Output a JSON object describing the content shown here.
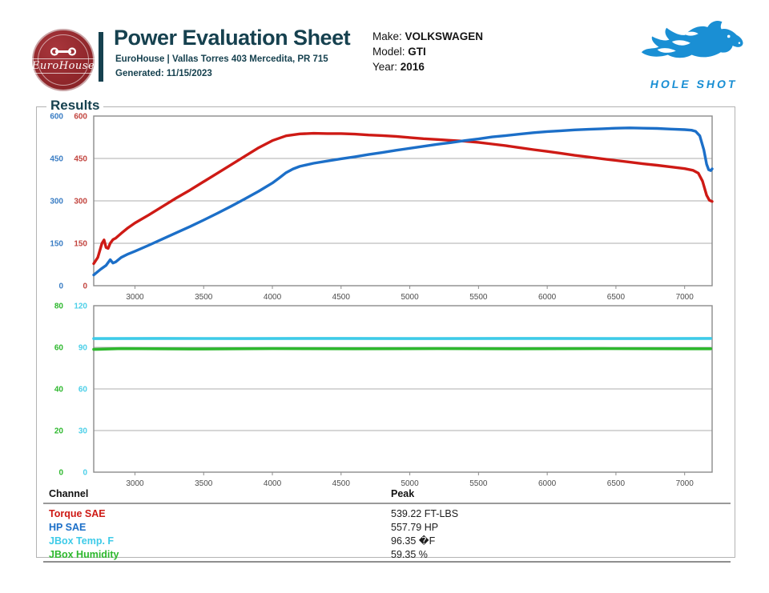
{
  "header": {
    "title": "Power Evaluation Sheet",
    "subtitle": "EuroHouse | Vallas Torres 403 Mercedita, PR 715",
    "generated": "Generated: 11/15/2023",
    "logo_name": "EuroHouse",
    "vehicle": {
      "make_label": "Make:",
      "make_value": "VOLKSWAGEN",
      "model_label": "Model:",
      "model_value": "GTI",
      "year_label": "Year:",
      "year_value": "2016"
    },
    "brand": {
      "name": "HOLE SHOT",
      "color": "#1a8fd4"
    }
  },
  "results": {
    "section_label": "Results"
  },
  "chart_data": [
    {
      "type": "line",
      "x_range": [
        2700,
        7200
      ],
      "x_ticks": [
        3000,
        3500,
        4000,
        4500,
        5000,
        5500,
        6000,
        6500,
        7000
      ],
      "grid": true,
      "grid_color": "#aeaeae",
      "border_color": "#8c8c8c",
      "legend_position": "none",
      "axes": [
        {
          "name": "HP SAE",
          "color": "#3a7dc4",
          "range": [
            0,
            600
          ],
          "ticks": [
            0,
            150,
            300,
            450,
            600
          ]
        },
        {
          "name": "Torque SAE",
          "color": "#c2453f",
          "range": [
            0,
            600
          ],
          "ticks": [
            0,
            150,
            300,
            450,
            600
          ]
        }
      ],
      "series": [
        {
          "name": "Torque SAE",
          "axis": 1,
          "color": "#ce1a15",
          "width": 3.4,
          "points": [
            [
              2700,
              78
            ],
            [
              2730,
              100
            ],
            [
              2760,
              150
            ],
            [
              2775,
              162
            ],
            [
              2790,
              135
            ],
            [
              2805,
              132
            ],
            [
              2820,
              150
            ],
            [
              2840,
              163
            ],
            [
              2860,
              168
            ],
            [
              2900,
              185
            ],
            [
              2950,
              205
            ],
            [
              3000,
              222
            ],
            [
              3100,
              250
            ],
            [
              3200,
              280
            ],
            [
              3300,
              310
            ],
            [
              3400,
              338
            ],
            [
              3500,
              368
            ],
            [
              3600,
              398
            ],
            [
              3700,
              428
            ],
            [
              3800,
              458
            ],
            [
              3900,
              488
            ],
            [
              4000,
              513
            ],
            [
              4100,
              530
            ],
            [
              4200,
              537
            ],
            [
              4300,
              539
            ],
            [
              4400,
              538
            ],
            [
              4500,
              538
            ],
            [
              4600,
              536
            ],
            [
              4700,
              533
            ],
            [
              4800,
              531
            ],
            [
              4900,
              528
            ],
            [
              5000,
              524
            ],
            [
              5100,
              520
            ],
            [
              5200,
              517
            ],
            [
              5300,
              514
            ],
            [
              5400,
              511
            ],
            [
              5500,
              507
            ],
            [
              5600,
              501
            ],
            [
              5700,
              495
            ],
            [
              5800,
              488
            ],
            [
              5900,
              481
            ],
            [
              6000,
              475
            ],
            [
              6100,
              468
            ],
            [
              6200,
              461
            ],
            [
              6300,
              455
            ],
            [
              6400,
              449
            ],
            [
              6500,
              443
            ],
            [
              6600,
              437
            ],
            [
              6700,
              431
            ],
            [
              6800,
              426
            ],
            [
              6900,
              420
            ],
            [
              7000,
              414
            ],
            [
              7060,
              408
            ],
            [
              7100,
              398
            ],
            [
              7130,
              370
            ],
            [
              7160,
              320
            ],
            [
              7180,
              302
            ],
            [
              7200,
              298
            ]
          ]
        },
        {
          "name": "HP SAE",
          "axis": 0,
          "color": "#1c6fc8",
          "width": 3.4,
          "points": [
            [
              2700,
              38
            ],
            [
              2750,
              58
            ],
            [
              2790,
              72
            ],
            [
              2820,
              92
            ],
            [
              2840,
              80
            ],
            [
              2860,
              84
            ],
            [
              2900,
              100
            ],
            [
              2950,
              112
            ],
            [
              3000,
              122
            ],
            [
              3100,
              143
            ],
            [
              3200,
              165
            ],
            [
              3300,
              187
            ],
            [
              3400,
              209
            ],
            [
              3500,
              232
            ],
            [
              3600,
              256
            ],
            [
              3700,
              281
            ],
            [
              3800,
              307
            ],
            [
              3900,
              334
            ],
            [
              4000,
              363
            ],
            [
              4050,
              381
            ],
            [
              4100,
              400
            ],
            [
              4150,
              413
            ],
            [
              4200,
              422
            ],
            [
              4300,
              433
            ],
            [
              4400,
              441
            ],
            [
              4500,
              449
            ],
            [
              4600,
              456
            ],
            [
              4700,
              464
            ],
            [
              4800,
              471
            ],
            [
              4900,
              479
            ],
            [
              5000,
              486
            ],
            [
              5100,
              493
            ],
            [
              5200,
              500
            ],
            [
              5300,
              506
            ],
            [
              5400,
              513
            ],
            [
              5500,
              519
            ],
            [
              5600,
              526
            ],
            [
              5700,
              531
            ],
            [
              5800,
              536
            ],
            [
              5900,
              541
            ],
            [
              6000,
              545
            ],
            [
              6100,
              548
            ],
            [
              6200,
              551
            ],
            [
              6300,
              553
            ],
            [
              6400,
              555
            ],
            [
              6500,
              557
            ],
            [
              6600,
              558
            ],
            [
              6700,
              557
            ],
            [
              6800,
              556
            ],
            [
              6900,
              554
            ],
            [
              7000,
              552
            ],
            [
              7050,
              550
            ],
            [
              7080,
              546
            ],
            [
              7110,
              530
            ],
            [
              7140,
              480
            ],
            [
              7160,
              430
            ],
            [
              7175,
              410
            ],
            [
              7190,
              407
            ],
            [
              7200,
              413
            ]
          ]
        }
      ]
    },
    {
      "type": "line",
      "x_range": [
        2700,
        7200
      ],
      "x_ticks": [
        3000,
        3500,
        4000,
        4500,
        5000,
        5500,
        6000,
        6500,
        7000
      ],
      "grid": true,
      "grid_color": "#aeaeae",
      "border_color": "#8c8c8c",
      "legend_position": "none",
      "axes": [
        {
          "name": "JBox Humidity",
          "color": "#2eb82e",
          "range": [
            0,
            80
          ],
          "ticks": [
            0,
            20,
            40,
            60,
            80
          ]
        },
        {
          "name": "JBox Temp. F",
          "color": "#4ccfe8",
          "range": [
            0,
            120
          ],
          "ticks": [
            0,
            30,
            60,
            90,
            120
          ]
        }
      ],
      "series": [
        {
          "name": "JBox Temp. F",
          "axis": 1,
          "color": "#3ecbe8",
          "width": 3.6,
          "points": [
            [
              2700,
              96.3
            ],
            [
              3200,
              96.4
            ],
            [
              3800,
              96.3
            ],
            [
              4500,
              96.4
            ],
            [
              5200,
              96.3
            ],
            [
              6000,
              96.4
            ],
            [
              6800,
              96.3
            ],
            [
              7190,
              96.4
            ]
          ]
        },
        {
          "name": "JBox Humidity",
          "axis": 0,
          "color": "#2eb82e",
          "width": 3.6,
          "points": [
            [
              2700,
              59.0
            ],
            [
              2900,
              59.4
            ],
            [
              3400,
              59.2
            ],
            [
              4000,
              59.4
            ],
            [
              4600,
              59.3
            ],
            [
              5200,
              59.4
            ],
            [
              5800,
              59.3
            ],
            [
              6400,
              59.4
            ],
            [
              7000,
              59.3
            ],
            [
              7190,
              59.3
            ]
          ]
        }
      ]
    }
  ],
  "table": {
    "headers": [
      "Channel",
      "Peak"
    ],
    "rows": [
      {
        "channel": "Torque SAE",
        "peak": "539.22 FT-LBS",
        "color": "#ce1a15"
      },
      {
        "channel": "HP SAE",
        "peak": "557.79 HP",
        "color": "#1c6fc8"
      },
      {
        "channel": "JBox Temp. F",
        "peak": "96.35 �F",
        "color": "#3ecbe8"
      },
      {
        "channel": "JBox Humidity",
        "peak": "59.35 %",
        "color": "#2eb82e"
      }
    ]
  }
}
